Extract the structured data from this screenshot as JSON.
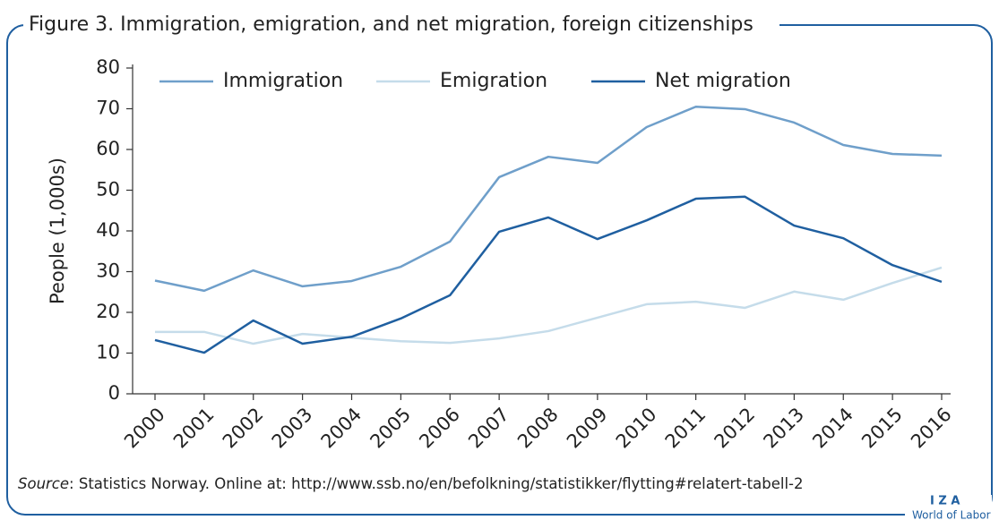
{
  "chart_data": {
    "type": "line",
    "title": "Figure 3. Immigration, emigration, and net migration, foreign citizenships",
    "y_label": "People (1,000s)",
    "categories": [
      "2000",
      "2001",
      "2002",
      "2003",
      "2004",
      "2005",
      "2006",
      "2007",
      "2008",
      "2009",
      "2010",
      "2011",
      "2012",
      "2013",
      "2014",
      "2015",
      "2016"
    ],
    "series": [
      {
        "name": "Immigration",
        "color": "#6f9fca",
        "values": [
          27.8,
          25.3,
          30.3,
          26.4,
          27.7,
          31.2,
          37.4,
          53.2,
          58.2,
          56.7,
          65.5,
          70.5,
          69.9,
          66.6,
          61.1,
          58.9,
          58.5
        ]
      },
      {
        "name": "Emigration",
        "color": "#c5dcea",
        "values": [
          15.2,
          15.2,
          12.3,
          14.7,
          13.8,
          12.9,
          12.5,
          13.6,
          15.4,
          18.7,
          22.0,
          22.6,
          21.1,
          25.1,
          23.1,
          27.2,
          31.0
        ]
      },
      {
        "name": "Net migration",
        "color": "#1f5fa0",
        "values": [
          13.2,
          10.1,
          18.0,
          12.3,
          14.0,
          18.5,
          24.2,
          39.8,
          43.3,
          38.0,
          42.6,
          47.9,
          48.4,
          41.3,
          38.2,
          31.6,
          27.5
        ]
      }
    ],
    "ylim": [
      0,
      80
    ],
    "yticks": [
      0,
      10,
      20,
      30,
      40,
      50,
      60,
      70,
      80
    ],
    "grid": false,
    "legend": "top",
    "source_label": "Source",
    "source_text": ": Statistics Norway. Online at: http://www.ssb.no/en/befolkning/statistikker/flytting#relatert-tabell-2",
    "logo": "I Z A",
    "logo_sub": "World of Labor"
  }
}
